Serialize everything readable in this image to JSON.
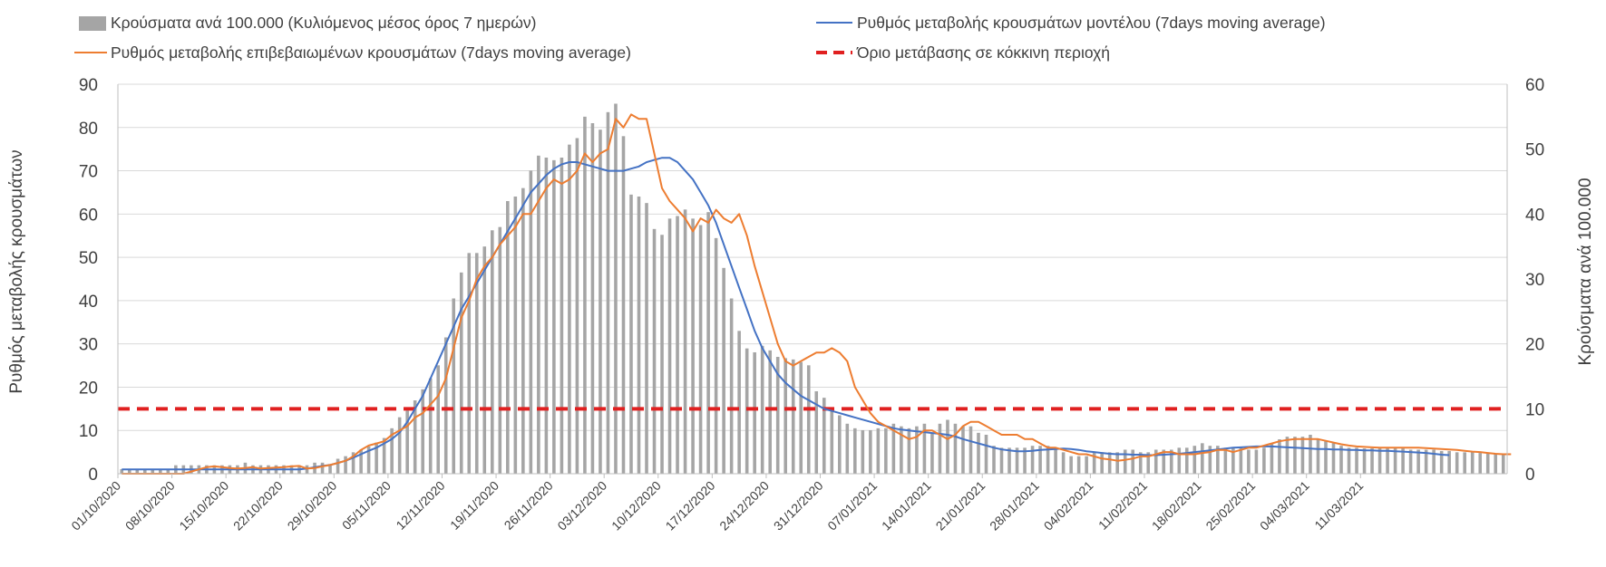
{
  "chart_data": {
    "type": "bar+line",
    "title": "",
    "legend": {
      "placement": "top",
      "entries": [
        {
          "key": "bars",
          "label": "Κρούσματα ανά 100.000 (Κυλιόμενος μέσος όρος 7 ημερών)"
        },
        {
          "key": "model",
          "label": "Ρυθμός μεταβολής κρουσμάτων μοντέλου (7days moving average)"
        },
        {
          "key": "confirmed",
          "label": "Ρυθμός μεταβολής επιβεβαιωμένων κρουσμάτων (7days moving average)"
        },
        {
          "key": "threshold",
          "label": "Όριο μετάβασης σε κόκκινη περιοχή"
        }
      ]
    },
    "ylabel_left": "Ρυθμός μεταβολής κρουσμάτων",
    "ylabel_right": "Κρούσματα ανά 100.000",
    "ylim_left": [
      0,
      90
    ],
    "yticks_left": [
      0,
      10,
      20,
      30,
      40,
      50,
      60,
      70,
      80,
      90
    ],
    "ylim_right": [
      0,
      60
    ],
    "yticks_right": [
      0,
      10,
      20,
      30,
      40,
      50,
      60
    ],
    "grid": true,
    "x_start": "01/10/2020",
    "x_labels": [
      "01/10/2020",
      "08/10/2020",
      "15/10/2020",
      "22/10/2020",
      "29/10/2020",
      "05/11/2020",
      "12/11/2020",
      "19/11/2020",
      "26/11/2020",
      "03/12/2020",
      "10/12/2020",
      "17/12/2020",
      "24/12/2020",
      "31/12/2020",
      "07/01/2021",
      "14/01/2021",
      "21/01/2021",
      "28/01/2021",
      "04/02/2021",
      "11/02/2021",
      "18/02/2021",
      "25/02/2021",
      "04/03/2021",
      "11/03/2021"
    ],
    "bars_cases_per_100k": [
      0.7,
      0.7,
      0.7,
      0.7,
      0.7,
      0.7,
      0.7,
      1.3,
      1.3,
      1.3,
      1.3,
      1.3,
      1.3,
      1.3,
      1.3,
      1.3,
      1.7,
      1.3,
      1.3,
      1.3,
      1.3,
      1.3,
      1.3,
      1.3,
      1.3,
      1.7,
      1.7,
      1.5,
      2.3,
      2.7,
      3.3,
      3.7,
      4.2,
      4.8,
      5.5,
      7,
      8.7,
      9.7,
      11.3,
      13,
      14.7,
      16.7,
      21,
      27,
      31,
      34,
      34,
      35,
      37.5,
      38,
      42,
      42.7,
      44,
      46.7,
      49,
      48.7,
      48.3,
      48.7,
      50.7,
      51.7,
      55,
      54,
      53,
      55.7,
      57,
      52,
      43,
      42.7,
      41.7,
      37.7,
      36.8,
      39.3,
      39.7,
      40.7,
      39.3,
      38.3,
      40.3,
      36.3,
      31.7,
      27,
      22,
      19.3,
      18.7,
      19.7,
      19,
      18,
      17.8,
      17.6,
      17.2,
      16.7,
      12.7,
      11.7,
      9.7,
      9,
      7.7,
      7,
      6.7,
      6.7,
      7,
      7,
      7.7,
      7.3,
      7,
      7.3,
      7.7,
      6.3,
      7.7,
      8.3,
      7.7,
      7.3,
      7.3,
      6.3,
      6,
      4.3,
      4,
      4,
      4,
      4,
      4.3,
      4.3,
      4.3,
      3.7,
      3.3,
      2.7,
      2.7,
      2.7,
      3.3,
      3.3,
      3.3,
      3.3,
      3.7,
      3.7,
      3.3,
      3.3,
      3.7,
      3.7,
      3.7,
      4,
      4,
      4.3,
      4.7,
      4.3,
      4.3,
      4,
      4,
      4,
      3.7,
      3.7,
      4,
      4.7,
      5.3,
      5.7,
      5.7,
      5.7,
      6,
      5.3,
      5,
      4.7,
      4.3,
      4,
      4,
      3.9,
      3.9,
      3.9,
      3.9,
      3.9,
      3.9,
      3.7,
      3.7,
      3.7,
      3.7,
      3.5,
      3.5,
      3.3,
      3.3,
      3.3,
      3.2,
      3.1,
      3,
      3
    ],
    "series_confirmed_rate": [
      0,
      0,
      0,
      0,
      0,
      0,
      0,
      0,
      0,
      0.5,
      1,
      1.5,
      1.7,
      1.5,
      1.3,
      1.2,
      1.3,
      1.5,
      1.2,
      1.3,
      1.4,
      1.5,
      1.7,
      1.8,
      1.2,
      1.3,
      1.7,
      2,
      2.5,
      3,
      4,
      5.5,
      6.5,
      7,
      7.5,
      9,
      10,
      11,
      13,
      14,
      16,
      18,
      22,
      29,
      36,
      40,
      45,
      48,
      50,
      53,
      55,
      57,
      60,
      60,
      63,
      66,
      68,
      67,
      68,
      70,
      74,
      72,
      74,
      75,
      82,
      80,
      83,
      82,
      82,
      74,
      66,
      63,
      61,
      59,
      56,
      59,
      58,
      61,
      59,
      58,
      60,
      55,
      48,
      42,
      36,
      30,
      26,
      25,
      26,
      27,
      28,
      28,
      29,
      28,
      26,
      20,
      17,
      14,
      12,
      11,
      10,
      9,
      8,
      8.5,
      10,
      10,
      9,
      8,
      9,
      11,
      12,
      12,
      11,
      10,
      9,
      9,
      9,
      8,
      8,
      7,
      6,
      6,
      5.5,
      5,
      4.5,
      4.5,
      4,
      3.5,
      3.3,
      3,
      3.2,
      3.5,
      4,
      4,
      4.5,
      5,
      5,
      4.5,
      4.5,
      4.5,
      4.8,
      5,
      5.5,
      5.5,
      5,
      5.5,
      6,
      6,
      6.5,
      7,
      7.5,
      7.8,
      8,
      8,
      8,
      8,
      7.6,
      7.2,
      6.8,
      6.5,
      6.3,
      6.2,
      6.1,
      6,
      6,
      6,
      6,
      6,
      6,
      5.9,
      5.8,
      5.7,
      5.6,
      5.5,
      5.3,
      5.1,
      5,
      4.8,
      4.6,
      4.5,
      4.5
    ],
    "series_model_rate": [
      1,
      1,
      1,
      1,
      1,
      1,
      1,
      1,
      1,
      1,
      1,
      1,
      1,
      1,
      1,
      1,
      1,
      1,
      1,
      1,
      1,
      1,
      1,
      1,
      1.2,
      1.5,
      1.8,
      2,
      2.5,
      3,
      3.7,
      4.5,
      5.3,
      6,
      7,
      8,
      9.5,
      12,
      15,
      18,
      22,
      26,
      30,
      34,
      38,
      41,
      44,
      47,
      50,
      53,
      56,
      59,
      62,
      65,
      67,
      69,
      70.5,
      71.5,
      72,
      72,
      71.5,
      71,
      70.5,
      70,
      70,
      70,
      70.5,
      71,
      72,
      72.5,
      73,
      73,
      72,
      70,
      68,
      65,
      62,
      58,
      53,
      48,
      43,
      38,
      33,
      29,
      26,
      23,
      21,
      19.5,
      18,
      17,
      16,
      15,
      14.5,
      14,
      13.5,
      13,
      12.5,
      12,
      11.5,
      11,
      10.5,
      10.2,
      10,
      9.8,
      9.6,
      9.4,
      9.2,
      9,
      8.6,
      8,
      7.5,
      7,
      6.5,
      6,
      5.6,
      5.4,
      5.2,
      5.2,
      5.3,
      5.5,
      5.6,
      5.7,
      5.8,
      5.7,
      5.5,
      5.2,
      5,
      4.8,
      4.6,
      4.5,
      4.5,
      4.4,
      4.4,
      4.3,
      4.3,
      4.4,
      4.5,
      4.6,
      4.8,
      5,
      5.2,
      5.4,
      5.6,
      5.8,
      6,
      6.1,
      6.2,
      6.3,
      6.3,
      6.3,
      6.2,
      6.1,
      6,
      5.9,
      5.8,
      5.7,
      5.7,
      5.6,
      5.6,
      5.5,
      5.5,
      5.4,
      5.4,
      5.3,
      5.3,
      5.2,
      5.1,
      5,
      4.9,
      4.8,
      4.6,
      4.4,
      4.3
    ],
    "threshold_rate": 15,
    "colors": {
      "bars": "#a5a5a5",
      "model": "#4472c4",
      "confirmed": "#ed7d31",
      "threshold": "#e02020",
      "grid": "#d9d9d9",
      "axis_text": "#404040"
    }
  }
}
